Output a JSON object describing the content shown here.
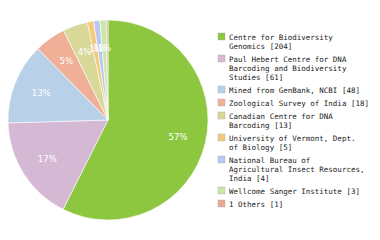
{
  "chart_data": {
    "type": "pie",
    "categories": [
      "Centre for Biodiversity\nGenomics [204]",
      "Paul Hebert Centre for DNA\nBarcoding and Biodiversity\nStudies [61]",
      "Mined from GenBank, NCBI [48]",
      "Zoological Survey of India [18]",
      "Canadian Centre for DNA\nBarcoding [13]",
      "University of Vermont, Dept.\nof Biology [5]",
      "National Bureau of\nAgricultural Insect Resources,\nIndia [4]",
      "Wellcome Sanger Institute [3]",
      "1 Others [1]"
    ],
    "values": [
      57,
      17,
      13,
      5,
      4,
      1,
      1,
      1,
      0.28
    ],
    "value_labels": [
      "57%",
      "17%",
      "13%",
      "5%",
      "4%",
      "1%",
      "1%",
      "1%",
      null
    ],
    "colors": [
      "#8dc63f",
      "#d4b8d4",
      "#b8d0e8",
      "#f0b098",
      "#d8d898",
      "#f5c87a",
      "#b8c8f0",
      "#c8e8a8",
      "#e8a898"
    ],
    "data_labels": true,
    "legend": "right"
  }
}
